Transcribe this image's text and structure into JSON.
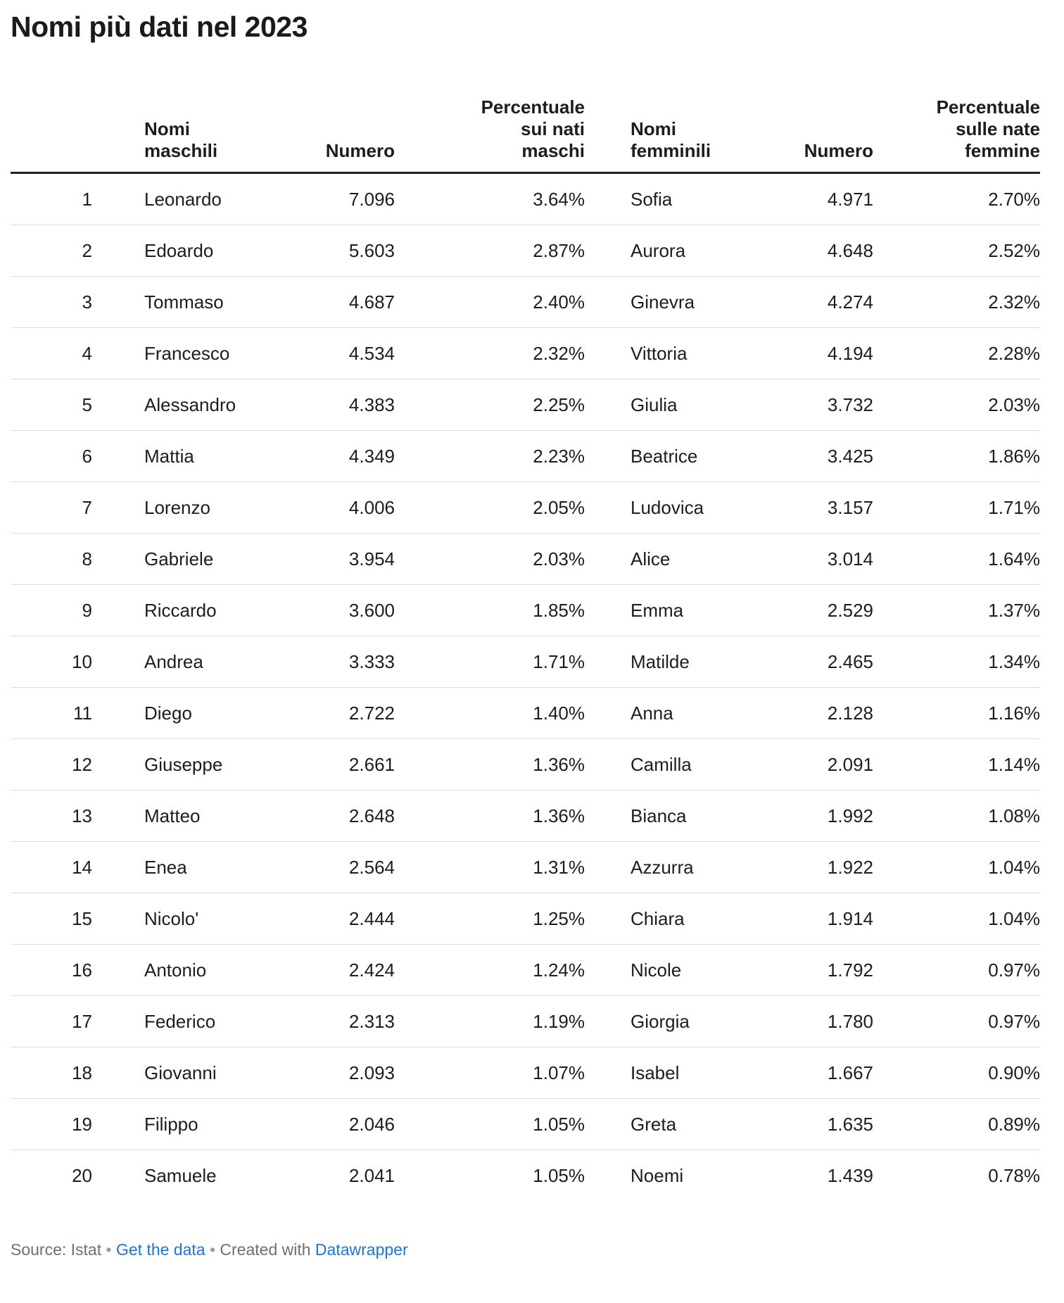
{
  "title": "Nomi più dati nel 2023",
  "chart_data": {
    "type": "table",
    "title": "Nomi più dati nel 2023",
    "columns": [
      {
        "key": "rank",
        "label": "",
        "align": "right"
      },
      {
        "key": "male_name",
        "label": "Nomi\nmaschili",
        "align": "left"
      },
      {
        "key": "male_count",
        "label": "Numero",
        "align": "right"
      },
      {
        "key": "male_pct",
        "label": "Percentuale\nsui nati\nmaschi",
        "align": "right"
      },
      {
        "key": "female_name",
        "label": "Nomi\nfemminili",
        "align": "left"
      },
      {
        "key": "female_count",
        "label": "Numero",
        "align": "right"
      },
      {
        "key": "female_pct",
        "label": "Percentuale\nsulle nate\nfemmine",
        "align": "right"
      }
    ],
    "rows": [
      {
        "rank": "1",
        "male_name": "Leonardo",
        "male_count": "7.096",
        "male_pct": "3.64%",
        "female_name": "Sofia",
        "female_count": "4.971",
        "female_pct": "2.70%"
      },
      {
        "rank": "2",
        "male_name": "Edoardo",
        "male_count": "5.603",
        "male_pct": "2.87%",
        "female_name": "Aurora",
        "female_count": "4.648",
        "female_pct": "2.52%"
      },
      {
        "rank": "3",
        "male_name": "Tommaso",
        "male_count": "4.687",
        "male_pct": "2.40%",
        "female_name": "Ginevra",
        "female_count": "4.274",
        "female_pct": "2.32%"
      },
      {
        "rank": "4",
        "male_name": "Francesco",
        "male_count": "4.534",
        "male_pct": "2.32%",
        "female_name": "Vittoria",
        "female_count": "4.194",
        "female_pct": "2.28%"
      },
      {
        "rank": "5",
        "male_name": "Alessandro",
        "male_count": "4.383",
        "male_pct": "2.25%",
        "female_name": "Giulia",
        "female_count": "3.732",
        "female_pct": "2.03%"
      },
      {
        "rank": "6",
        "male_name": "Mattia",
        "male_count": "4.349",
        "male_pct": "2.23%",
        "female_name": "Beatrice",
        "female_count": "3.425",
        "female_pct": "1.86%"
      },
      {
        "rank": "7",
        "male_name": "Lorenzo",
        "male_count": "4.006",
        "male_pct": "2.05%",
        "female_name": "Ludovica",
        "female_count": "3.157",
        "female_pct": "1.71%"
      },
      {
        "rank": "8",
        "male_name": "Gabriele",
        "male_count": "3.954",
        "male_pct": "2.03%",
        "female_name": "Alice",
        "female_count": "3.014",
        "female_pct": "1.64%"
      },
      {
        "rank": "9",
        "male_name": "Riccardo",
        "male_count": "3.600",
        "male_pct": "1.85%",
        "female_name": "Emma",
        "female_count": "2.529",
        "female_pct": "1.37%"
      },
      {
        "rank": "10",
        "male_name": "Andrea",
        "male_count": "3.333",
        "male_pct": "1.71%",
        "female_name": "Matilde",
        "female_count": "2.465",
        "female_pct": "1.34%"
      },
      {
        "rank": "11",
        "male_name": "Diego",
        "male_count": "2.722",
        "male_pct": "1.40%",
        "female_name": "Anna",
        "female_count": "2.128",
        "female_pct": "1.16%"
      },
      {
        "rank": "12",
        "male_name": "Giuseppe",
        "male_count": "2.661",
        "male_pct": "1.36%",
        "female_name": "Camilla",
        "female_count": "2.091",
        "female_pct": "1.14%"
      },
      {
        "rank": "13",
        "male_name": "Matteo",
        "male_count": "2.648",
        "male_pct": "1.36%",
        "female_name": "Bianca",
        "female_count": "1.992",
        "female_pct": "1.08%"
      },
      {
        "rank": "14",
        "male_name": "Enea",
        "male_count": "2.564",
        "male_pct": "1.31%",
        "female_name": "Azzurra",
        "female_count": "1.922",
        "female_pct": "1.04%"
      },
      {
        "rank": "15",
        "male_name": "Nicolo'",
        "male_count": "2.444",
        "male_pct": "1.25%",
        "female_name": "Chiara",
        "female_count": "1.914",
        "female_pct": "1.04%"
      },
      {
        "rank": "16",
        "male_name": "Antonio",
        "male_count": "2.424",
        "male_pct": "1.24%",
        "female_name": "Nicole",
        "female_count": "1.792",
        "female_pct": "0.97%"
      },
      {
        "rank": "17",
        "male_name": "Federico",
        "male_count": "2.313",
        "male_pct": "1.19%",
        "female_name": "Giorgia",
        "female_count": "1.780",
        "female_pct": "0.97%"
      },
      {
        "rank": "18",
        "male_name": "Giovanni",
        "male_count": "2.093",
        "male_pct": "1.07%",
        "female_name": "Isabel",
        "female_count": "1.667",
        "female_pct": "0.90%"
      },
      {
        "rank": "19",
        "male_name": "Filippo",
        "male_count": "2.046",
        "male_pct": "1.05%",
        "female_name": "Greta",
        "female_count": "1.635",
        "female_pct": "0.89%"
      },
      {
        "rank": "20",
        "male_name": "Samuele",
        "male_count": "2.041",
        "male_pct": "1.05%",
        "female_name": "Noemi",
        "female_count": "1.439",
        "female_pct": "0.78%"
      }
    ]
  },
  "footer": {
    "source_label": "Source:",
    "source_name": "Istat",
    "separator": "•",
    "get_data_link": "Get the data",
    "created_with": "Created with",
    "datawrapper_link": "Datawrapper"
  },
  "colors": {
    "text": "#1d1d1d",
    "header_rule": "#222222",
    "row_divider": "#dddddd",
    "footer_text": "#6f6f6f",
    "link_blue": "#1d76d2"
  }
}
